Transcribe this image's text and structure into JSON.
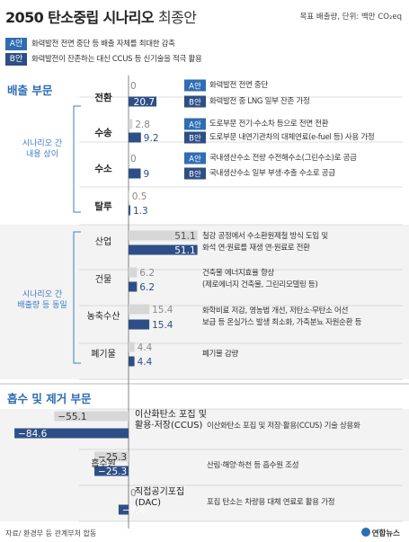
{
  "header": {
    "title_main": "2050 탄소중립 시나리오",
    "title_sub": "최종안",
    "unit": "목표 배출량, 단위: 백만 CO₂eq"
  },
  "legend": [
    {
      "badge": "A안",
      "text": "화력발전 전면 중단 등 배출 자체를 최대한 감축"
    },
    {
      "badge": "B안",
      "text": "화력발전이 잔존하는 대신 CCUS 등 신기술을 적극 활용"
    }
  ],
  "sections": {
    "emission_title": "배출 부문",
    "absorb_title": "흡수 및 제거 부문",
    "side_label_1": [
      "시나리오 간",
      "내용 상이"
    ],
    "side_label_2": [
      "시나리오 간",
      "배출량 등 동일"
    ]
  },
  "colors": {
    "a_bar": "#d7d7d7",
    "b_bar": "#2d4e86",
    "badge": "#2e6db2",
    "single_bar": "#2d4e86",
    "section_blue": "#2e6db2"
  },
  "chart_data": {
    "type": "bar",
    "orientation": "horizontal",
    "series_names": [
      "A안",
      "B안"
    ],
    "categories": [
      {
        "name": "전환",
        "a": 0,
        "b": 20.7,
        "desc_a": "화력발전 전면 중단",
        "desc_b": "화력발전 중 LNG 일부 잔존 가정"
      },
      {
        "name": "수송",
        "a": 2.8,
        "b": 9.2,
        "desc_a": "도로부문 전기·수소차 등으로 전면 전환",
        "desc_b": "도로부문 내연기관차의 대체연료(e-fuel 등) 사용 가정"
      },
      {
        "name": "수소",
        "a": 0,
        "b": 9,
        "desc_a": "국내생산수소 전량 수전해수소(그린수소)로 공급",
        "desc_b": "국내생산수소 일부 부생·추출 수소로 공급"
      },
      {
        "name": "탈루",
        "a": 0.5,
        "b": 1.3
      },
      {
        "name": "산업",
        "a": 51.1,
        "b": 51.1,
        "desc": [
          "철강 공정에서 수소환원제철 방식 도입 및",
          "화석 연·원료를 재생 연·원료로 전환"
        ]
      },
      {
        "name": "건물",
        "a": 6.2,
        "b": 6.2,
        "desc": [
          "건축물 에너지효율 향상",
          "(제로에너지 건축물, 그린리모델링 등)"
        ]
      },
      {
        "name": "농축수산",
        "a": 15.4,
        "b": 15.4,
        "desc": [
          "화학비료 저감, 영농법 개선, 저탄소·무탄소 어선",
          "보급 등 온실가스 발생 최소화, 가축분뇨 자원순환 등"
        ]
      },
      {
        "name": "폐기물",
        "a": 4.4,
        "b": 4.4,
        "desc": [
          "폐기물 감량"
        ]
      },
      {
        "name": "이산화탄소 포집 및 활용·저장(CCUS)",
        "label_lines": [
          "이산화탄소 포집 및",
          "활용·저장(CCUS)"
        ],
        "a": -55.1,
        "b": -84.6,
        "desc": [
          "이산화탄소 포집 및 저장·활용(CCUS) 기술 상용화"
        ]
      },
      {
        "name": "흡수원",
        "a": -25.3,
        "b": -25.3,
        "desc": [
          "산림·해양·하천 등 흡수원 조성"
        ]
      },
      {
        "name": "직접공기포집 (DAC)",
        "label_lines": [
          "직접공기포집",
          "(DAC)"
        ],
        "a": 0,
        "b": -7.4,
        "desc": [
          "포집 탄소는 차량용 대체 연료로 활용 가정"
        ]
      }
    ]
  },
  "footer": {
    "source": "자료/ 환경부 등 관계부처 합동",
    "logo": "연합뉴스"
  }
}
